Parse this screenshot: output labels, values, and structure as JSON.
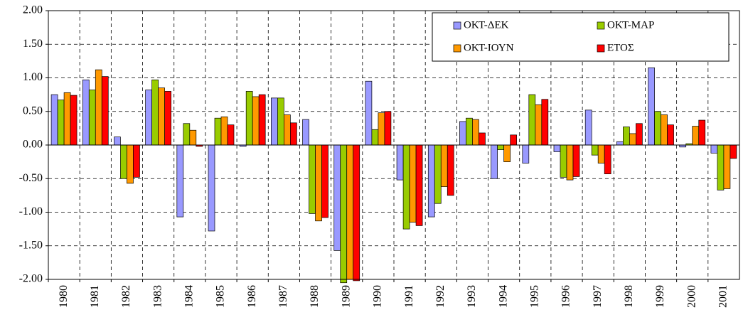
{
  "chart_data": {
    "type": "bar",
    "categories": [
      "1980",
      "1981",
      "1982",
      "1983",
      "1984",
      "1985",
      "1986",
      "1987",
      "1988",
      "1989",
      "1990",
      "1991",
      "1992",
      "1993",
      "1994",
      "1995",
      "1996",
      "1997",
      "1998",
      "1999",
      "2000",
      "2001"
    ],
    "series": [
      {
        "name": "ΟΚΤ-ΔΕΚ",
        "color": "#9999ff",
        "values": [
          0.75,
          0.97,
          0.12,
          0.82,
          -1.07,
          -1.28,
          -0.02,
          0.7,
          0.38,
          -1.57,
          0.95,
          -0.52,
          -1.07,
          0.35,
          -0.5,
          -0.27,
          -0.1,
          0.52,
          0.05,
          1.15,
          -0.03,
          -0.12
        ]
      },
      {
        "name": "ΟΚΤ-ΜΑΡ",
        "color": "#99cc00",
        "values": [
          0.67,
          0.82,
          -0.5,
          0.97,
          0.32,
          0.4,
          0.8,
          0.7,
          -1.02,
          -2.05,
          0.23,
          -1.25,
          -0.87,
          0.4,
          -0.07,
          0.75,
          -0.48,
          -0.15,
          0.27,
          0.5,
          0.02,
          -0.67
        ]
      },
      {
        "name": "ΟΚΤ-ΙΟΥΝ",
        "color": "#ff9900",
        "values": [
          0.78,
          1.12,
          -0.57,
          0.85,
          0.22,
          0.42,
          0.72,
          0.45,
          -1.13,
          -2.0,
          0.48,
          -1.15,
          -0.62,
          0.38,
          -0.25,
          0.6,
          -0.52,
          -0.27,
          0.17,
          0.45,
          0.28,
          -0.65
        ]
      },
      {
        "name": "ΕΤΟΣ",
        "color": "#ff0000",
        "values": [
          0.74,
          1.02,
          -0.48,
          0.8,
          -0.02,
          0.3,
          0.75,
          0.33,
          -1.08,
          -2.02,
          0.5,
          -1.2,
          -0.75,
          0.18,
          0.15,
          0.68,
          -0.47,
          -0.43,
          0.32,
          0.3,
          0.37,
          -0.2
        ]
      }
    ],
    "ylim": [
      -2,
      2
    ],
    "yticks": [
      {
        "value": 2,
        "label": "2.00"
      },
      {
        "value": 1.5,
        "label": "1.50"
      },
      {
        "value": 1,
        "label": "1.00"
      },
      {
        "value": 0.5,
        "label": "0.50"
      },
      {
        "value": 0,
        "label": "0.00"
      },
      {
        "value": -0.5,
        "label": "-0.50"
      },
      {
        "value": -1,
        "label": "-1.00"
      },
      {
        "value": -1.5,
        "label": "-1.50"
      },
      {
        "value": -2,
        "label": "-2.00"
      }
    ],
    "grid": true,
    "legend": "upper right"
  }
}
